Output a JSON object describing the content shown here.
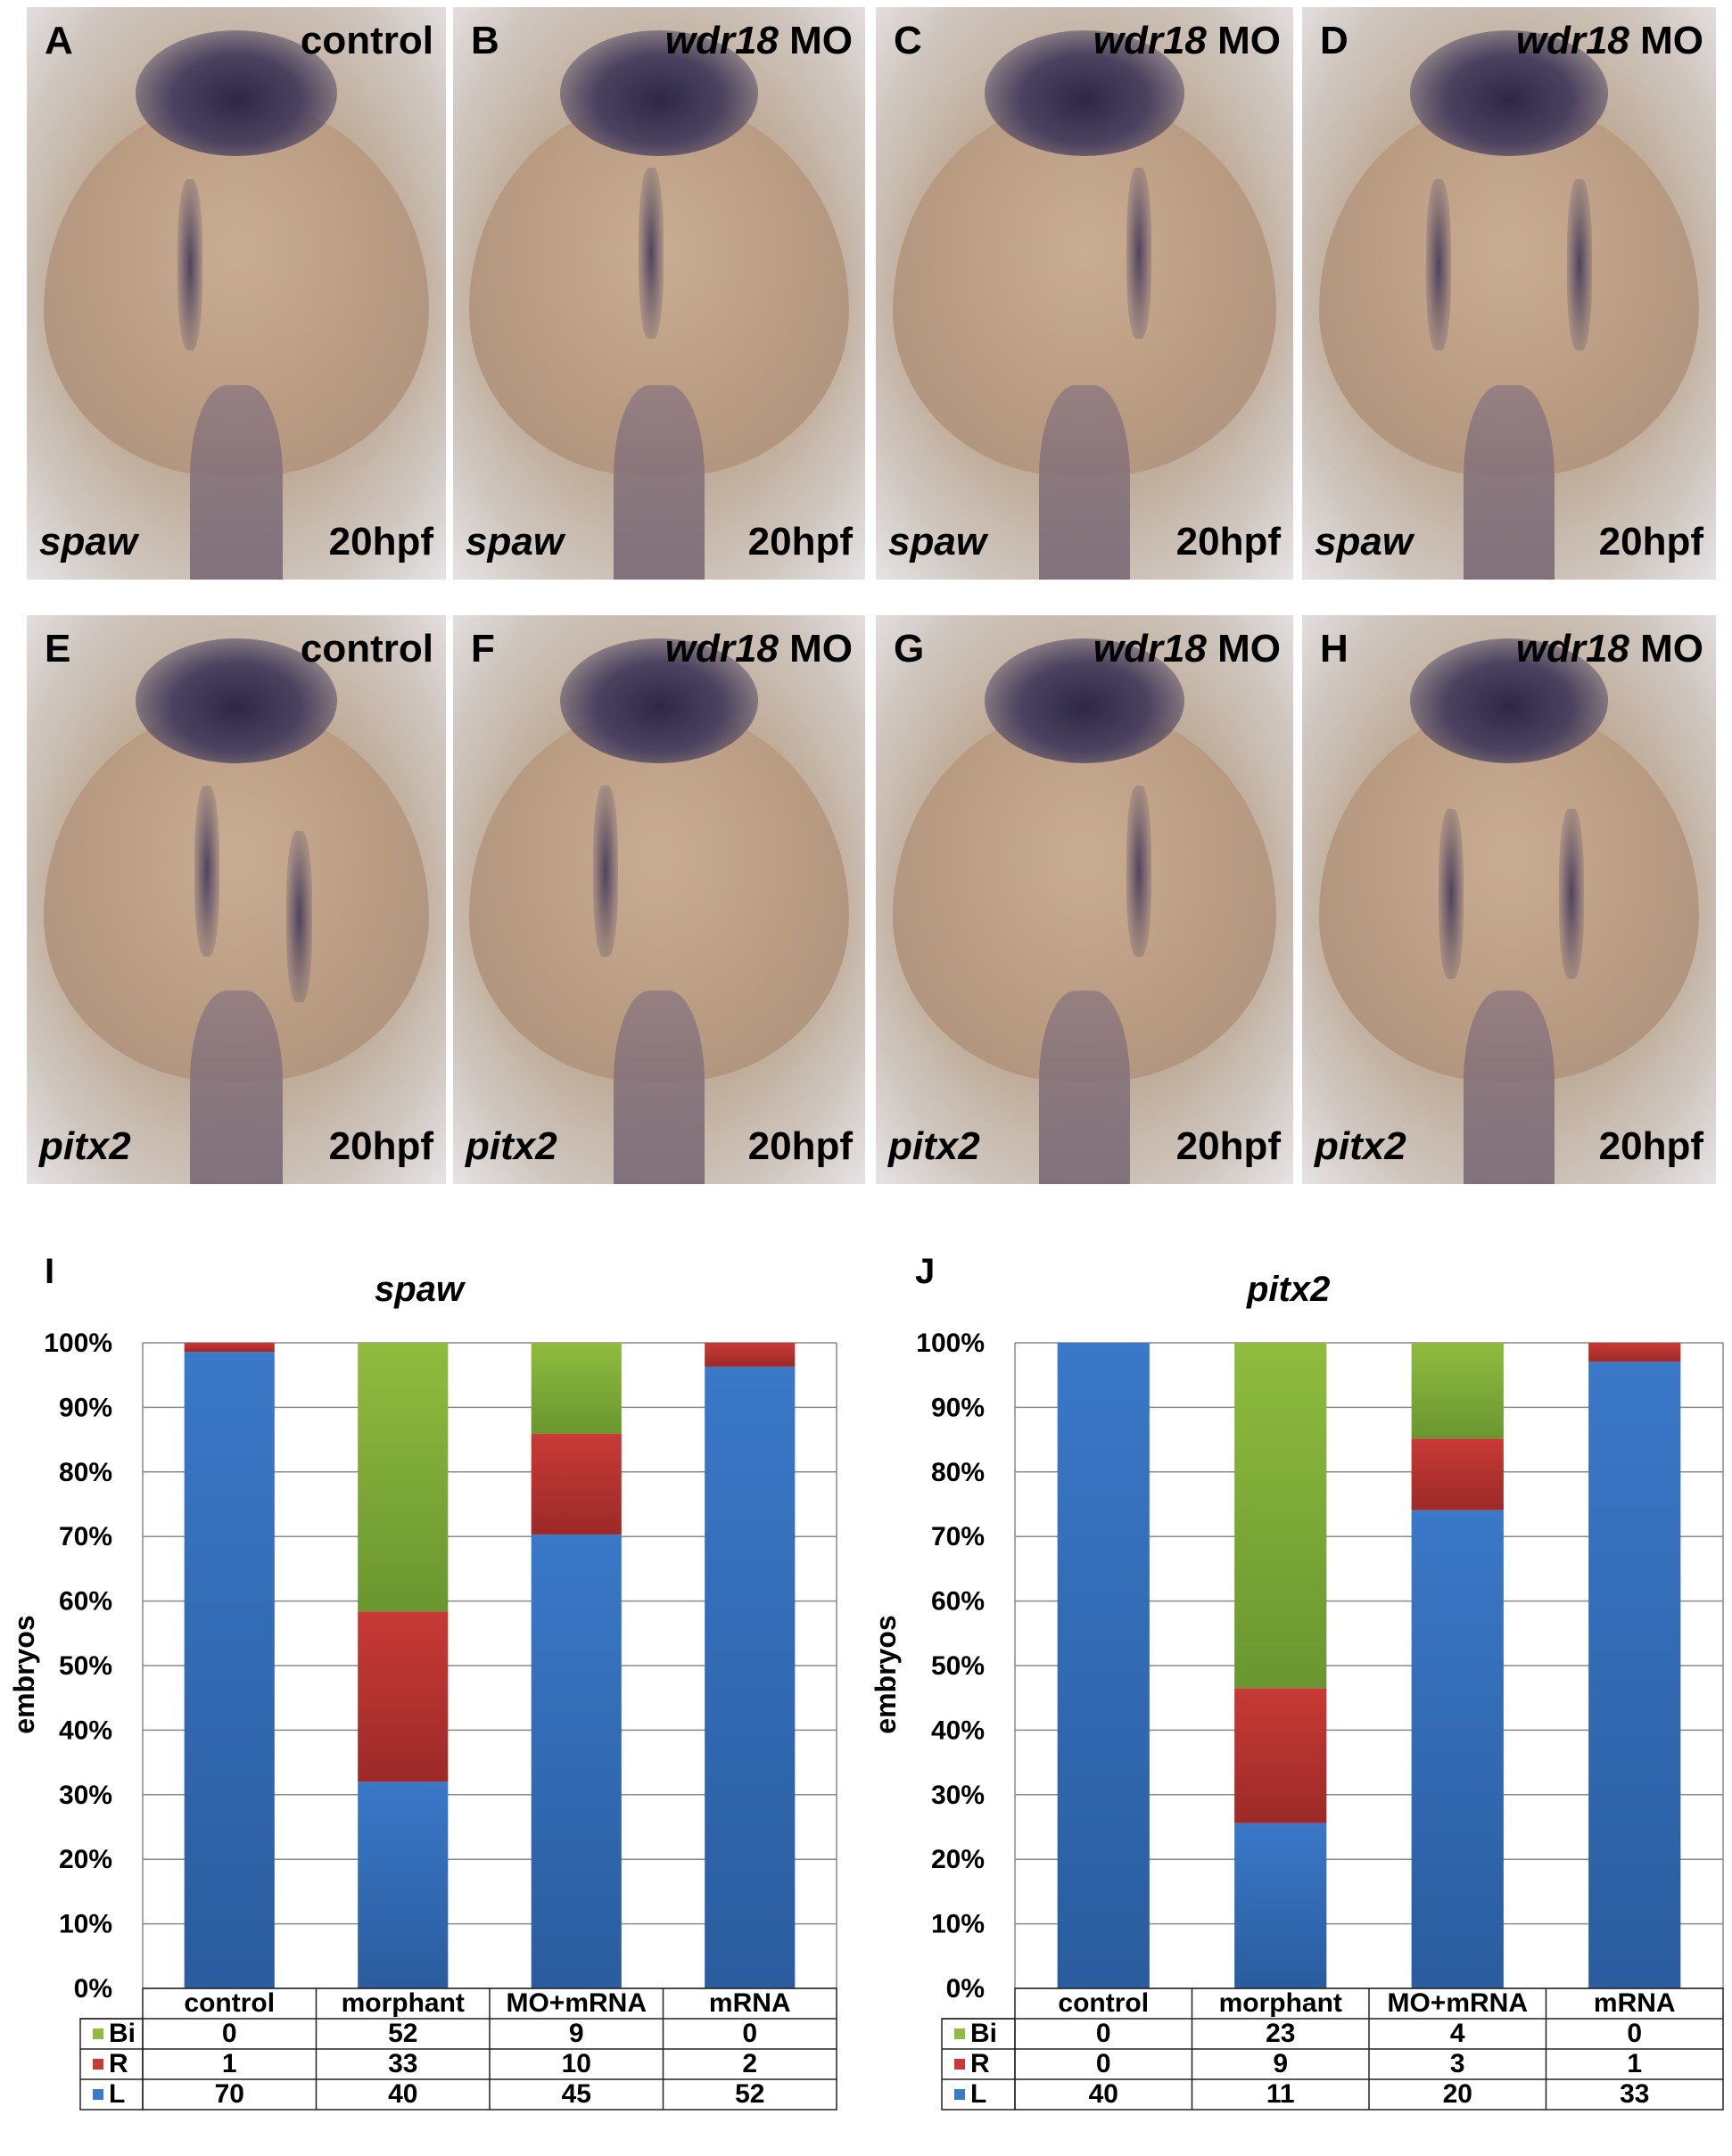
{
  "panels": [
    {
      "letter": "A",
      "condition": "control",
      "italic_part": "",
      "gene": "spaw",
      "stage": "20hpf"
    },
    {
      "letter": "B",
      "condition": " MO",
      "italic_part": "wdr18",
      "gene": "spaw",
      "stage": "20hpf"
    },
    {
      "letter": "C",
      "condition": " MO",
      "italic_part": "wdr18",
      "gene": "spaw",
      "stage": "20hpf"
    },
    {
      "letter": "D",
      "condition": " MO",
      "italic_part": "wdr18",
      "gene": "spaw",
      "stage": "20hpf"
    },
    {
      "letter": "E",
      "condition": "control",
      "italic_part": "",
      "gene": "pitx2",
      "stage": "20hpf"
    },
    {
      "letter": "F",
      "condition": " MO",
      "italic_part": "wdr18",
      "gene": "pitx2",
      "stage": "20hpf"
    },
    {
      "letter": "G",
      "condition": " MO",
      "italic_part": "wdr18",
      "gene": "pitx2",
      "stage": "20hpf"
    },
    {
      "letter": "H",
      "condition": " MO",
      "italic_part": "wdr18",
      "gene": "pitx2",
      "stage": "20hpf"
    }
  ],
  "colors": {
    "L": "#3a78c8",
    "R": "#c83a35",
    "Bi": "#8fbc3e"
  },
  "chart_data": [
    {
      "type": "bar",
      "letter": "I",
      "title": "spaw",
      "ylabel": "embryos",
      "ylim": [
        0,
        100
      ],
      "yticks": [
        "0%",
        "10%",
        "20%",
        "30%",
        "40%",
        "50%",
        "60%",
        "70%",
        "80%",
        "90%",
        "100%"
      ],
      "stacked_percent": true,
      "categories": [
        "control",
        "morphant",
        "MO+mRNA",
        "mRNA"
      ],
      "series": [
        {
          "name": "L",
          "values": [
            70,
            40,
            45,
            52
          ]
        },
        {
          "name": "R",
          "values": [
            1,
            33,
            10,
            2
          ]
        },
        {
          "name": "Bi",
          "values": [
            0,
            52,
            9,
            0
          ]
        }
      ],
      "table_order": [
        "Bi",
        "R",
        "L"
      ]
    },
    {
      "type": "bar",
      "letter": "J",
      "title": "pitx2",
      "ylabel": "embryos",
      "ylim": [
        0,
        100
      ],
      "yticks": [
        "0%",
        "10%",
        "20%",
        "30%",
        "40%",
        "50%",
        "60%",
        "70%",
        "80%",
        "90%",
        "100%"
      ],
      "stacked_percent": true,
      "categories": [
        "control",
        "morphant",
        "MO+mRNA",
        "mRNA"
      ],
      "series": [
        {
          "name": "L",
          "values": [
            40,
            11,
            20,
            33
          ]
        },
        {
          "name": "R",
          "values": [
            0,
            9,
            3,
            1
          ]
        },
        {
          "name": "Bi",
          "values": [
            0,
            23,
            4,
            0
          ]
        }
      ],
      "table_order": [
        "Bi",
        "R",
        "L"
      ]
    }
  ]
}
